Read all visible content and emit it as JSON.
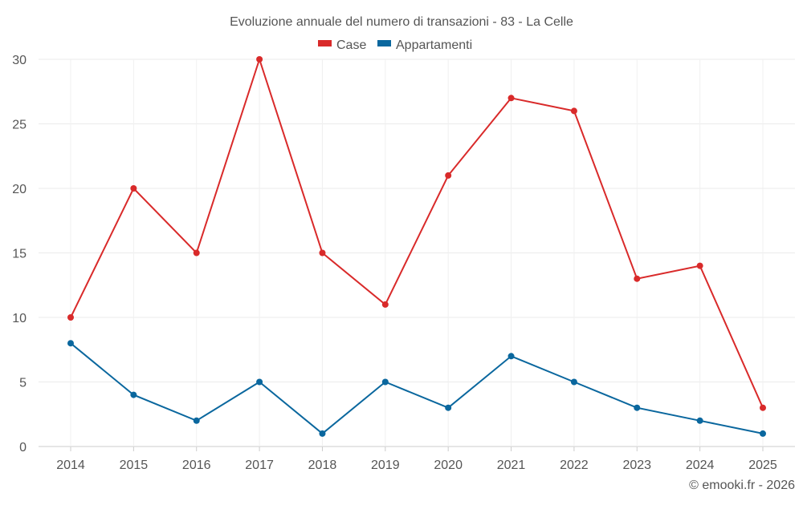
{
  "chart_data": {
    "type": "line",
    "title": "Evoluzione annuale del numero di transazioni - 83 - La Celle",
    "xlabel": "",
    "ylabel": "",
    "categories": [
      "2014",
      "2015",
      "2016",
      "2017",
      "2018",
      "2019",
      "2020",
      "2021",
      "2022",
      "2023",
      "2024",
      "2025"
    ],
    "series": [
      {
        "name": "Case",
        "color": "#d92a2a",
        "values": [
          10,
          20,
          15,
          30,
          15,
          11,
          21,
          27,
          26,
          13,
          14,
          3
        ]
      },
      {
        "name": "Appartamenti",
        "color": "#0a679e",
        "values": [
          8,
          4,
          2,
          5,
          1,
          5,
          3,
          7,
          5,
          3,
          2,
          1
        ]
      }
    ],
    "ylim": [
      0,
      30
    ],
    "yticks": [
      "0",
      "5",
      "10",
      "15",
      "20",
      "25",
      "30"
    ],
    "grid": true,
    "legend": "top-center"
  },
  "credit": "© emooki.fr - 2026"
}
